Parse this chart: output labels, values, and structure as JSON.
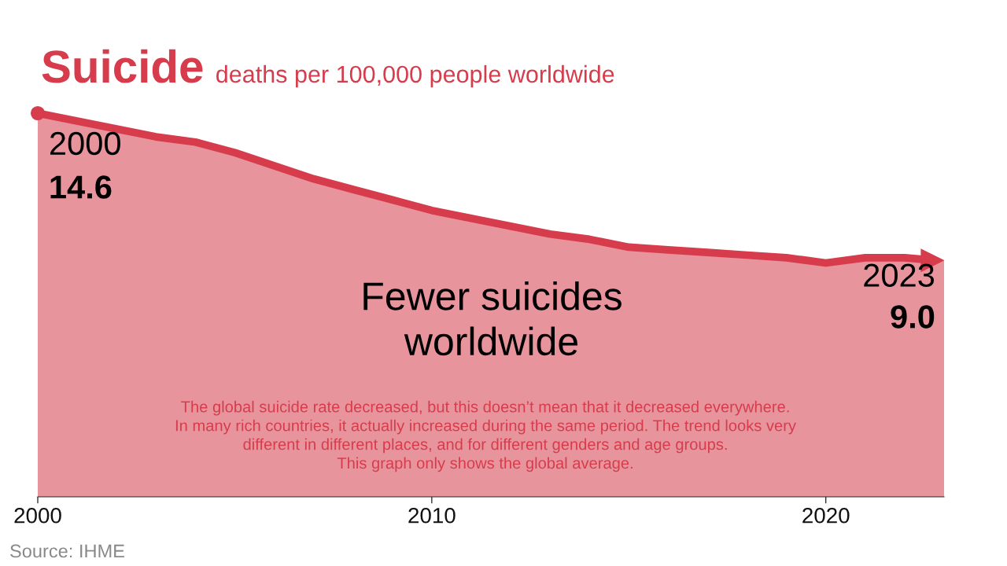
{
  "chart_data": {
    "type": "area",
    "title": "Suicide",
    "subtitle": "deaths per 100,000 people worldwide",
    "x": [
      2000,
      2001,
      2002,
      2003,
      2004,
      2005,
      2006,
      2007,
      2008,
      2009,
      2010,
      2011,
      2012,
      2013,
      2014,
      2015,
      2016,
      2017,
      2018,
      2019,
      2020,
      2021,
      2022,
      2023
    ],
    "series": [
      {
        "color": "#d63c4c",
        "values": [
          14.6,
          14.3,
          14.0,
          13.7,
          13.5,
          13.1,
          12.6,
          12.1,
          11.7,
          11.3,
          10.9,
          10.6,
          10.3,
          10.0,
          9.8,
          9.5,
          9.4,
          9.3,
          9.2,
          9.1,
          8.9,
          9.1,
          9.1,
          9.0
        ],
        "value_labels": [
          "14.6",
          null,
          null,
          null,
          null,
          null,
          null,
          null,
          null,
          null,
          null,
          null,
          null,
          null,
          null,
          null,
          null,
          null,
          null,
          null,
          null,
          null,
          null,
          "9.0"
        ]
      }
    ],
    "xlim": [
      2000,
      2023
    ],
    "xticks": [
      2000,
      2010,
      2020
    ],
    "tick_labels": "x",
    "grid": false,
    "legend": false,
    "annotations": [
      {
        "text": "2000",
        "x": 2000,
        "y": 14.6
      },
      {
        "text": "2023",
        "x": 2023,
        "y": 9.0
      },
      "Fewer suicides\nworldwide",
      "The global suicide rate decreased, but this doesn’t mean that it decreased everywhere.\nIn many rich countries, it actually increased during the same period. The trend looks very\ndifferent in different places, and for different genders and age groups.\nThis graph only shows the global average.",
      "Source: IHME"
    ]
  }
}
